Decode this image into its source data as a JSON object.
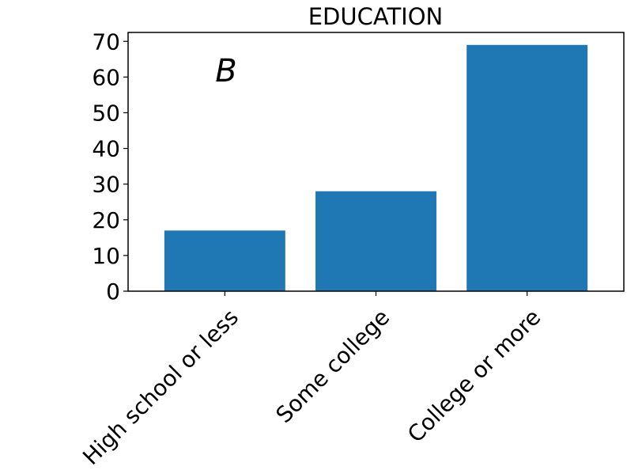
{
  "chart_data": {
    "type": "bar",
    "title": "EDUCATION",
    "panel_label": "B",
    "categories": [
      "High school or less",
      "Some college",
      "College or more"
    ],
    "values": [
      17,
      28,
      69
    ],
    "ylim": [
      0,
      72.5
    ],
    "yticks": [
      0,
      10,
      20,
      30,
      40,
      50,
      60,
      70
    ],
    "xlabel": "",
    "ylabel": "",
    "bar_color": "#1f77b4",
    "grid": false
  }
}
